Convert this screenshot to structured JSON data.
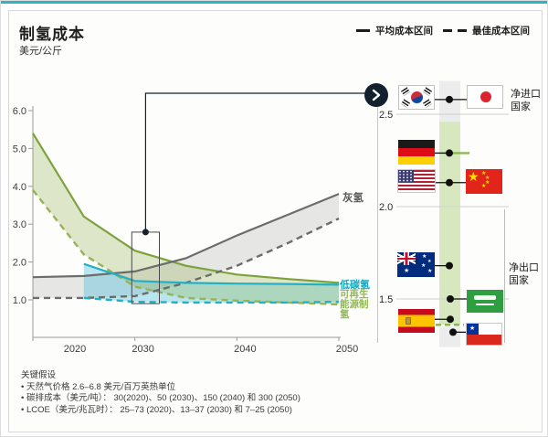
{
  "footnotes": {
    "heading": "关键假设",
    "items": [
      "• 天然气价格 2.6–6.8 美元/百万英热单位",
      "• 碳排成本（美元/吨）： 30(2020)、50 (2030)、150 (2040) 和 300 (2050)",
      "• LCOE（美元/兆瓦时）： 25–73 (2020)、13–37 (2030) 和 7–25 (2050)"
    ]
  },
  "colors": {
    "accent_teal": "#2fb4c4",
    "grey_line": "#6b6d6c",
    "green_line": "#7da23c",
    "green_dashed": "#98b254",
    "teal_line": "#22b0c6",
    "dark_navy": "#13212e"
  },
  "chart_data": [
    {
      "type": "line",
      "title": "制氢成本",
      "ylabel": "美元/公斤",
      "legend": [
        "平均成本区间",
        "最佳成本区间"
      ],
      "x": [
        2020,
        2025,
        2030,
        2035,
        2040,
        2045,
        2050
      ],
      "x_ticks": [
        "2020",
        "2030",
        "2040",
        "2050"
      ],
      "y_ticks": [
        "1.0",
        "2.0",
        "3.0",
        "4.0",
        "5.0",
        "6.0"
      ],
      "ylim": [
        0,
        6.1
      ],
      "grid": false,
      "series": [
        {
          "id": "grey-avg",
          "name": "灰氢 平均成本",
          "style": "solid",
          "color": "#6b6d6c",
          "values": [
            1.6,
            1.63,
            1.75,
            2.1,
            2.7,
            3.25,
            3.8
          ]
        },
        {
          "id": "grey-best",
          "name": "灰氢 最佳成本",
          "style": "dashed",
          "color": "#6b6d6c",
          "values": [
            1.05,
            1.05,
            1.1,
            1.45,
            1.9,
            2.5,
            3.15
          ]
        },
        {
          "id": "renewable-avg",
          "name": "可再生能源制氢 平均成本",
          "style": "solid",
          "color": "#7da23c",
          "values": [
            5.4,
            3.2,
            2.3,
            1.9,
            1.67,
            1.55,
            1.45
          ]
        },
        {
          "id": "renewable-best",
          "name": "可再生能源制氢 最佳成本",
          "style": "dashed",
          "color": "#98b254",
          "values": [
            3.9,
            2.2,
            1.35,
            1.05,
            0.98,
            0.93,
            0.88
          ]
        },
        {
          "id": "lowcarbon-avg",
          "name": "低碳氢 平均成本",
          "style": "solid",
          "color": "#22b0c6",
          "values": [
            null,
            1.95,
            1.5,
            1.45,
            1.43,
            1.42,
            1.4
          ]
        },
        {
          "id": "lowcarbon-best",
          "name": "低碳氢 最佳成本",
          "style": "dashed",
          "color": "#22b0c6",
          "values": [
            null,
            1.05,
            0.95,
            0.93,
            0.93,
            0.93,
            0.95
          ]
        }
      ],
      "bands": [
        {
          "upper": "grey-avg",
          "lower": "grey-best",
          "fill": "rgba(140,140,140,0.20)"
        },
        {
          "upper": "lowcarbon-avg",
          "lower": "lowcarbon-best",
          "fill": "rgba(70,190,215,0.38)"
        },
        {
          "upper": "renewable-avg",
          "lower": "renewable-best",
          "fill": "rgba(150,180,80,0.30)"
        }
      ],
      "series_labels": {
        "grey": "灰氢",
        "lowcarbon": "低碳氢",
        "renewable": "可再生能源制氢"
      },
      "highlight_box": {
        "x0": 2029.7,
        "x1": 2032.4,
        "y0": 0.9,
        "y1": 2.79
      }
    },
    {
      "type": "scatter",
      "y_ticks": [
        "2.5",
        "2.0",
        "1.5"
      ],
      "groups": [
        {
          "label": "净进口国家",
          "points": [
            {
              "flags": [
                "south-korea",
                "japan"
              ],
              "value": 2.58
            },
            {
              "flags": [
                "germany"
              ],
              "value": 2.29
            },
            {
              "flags": [
                "united-states",
                "china"
              ],
              "value": 2.13
            }
          ]
        },
        {
          "label": "净出口国家",
          "points": [
            {
              "flags": [
                "australia"
              ],
              "value": 1.68
            },
            {
              "flags": [
                "saudi-arabia"
              ],
              "value": 1.5
            },
            {
              "flags": [
                "spain"
              ],
              "value": 1.39
            },
            {
              "flags": [
                "chile"
              ],
              "value": 1.32
            }
          ]
        }
      ],
      "band_segments": [
        {
          "from": 2.68,
          "to": 2.46,
          "color": "grey"
        },
        {
          "from": 2.46,
          "to": 1.36,
          "color": "green"
        },
        {
          "from": 1.35,
          "to": 1.24,
          "color": "grey"
        }
      ],
      "dashed_marker_value": 1.36
    }
  ]
}
